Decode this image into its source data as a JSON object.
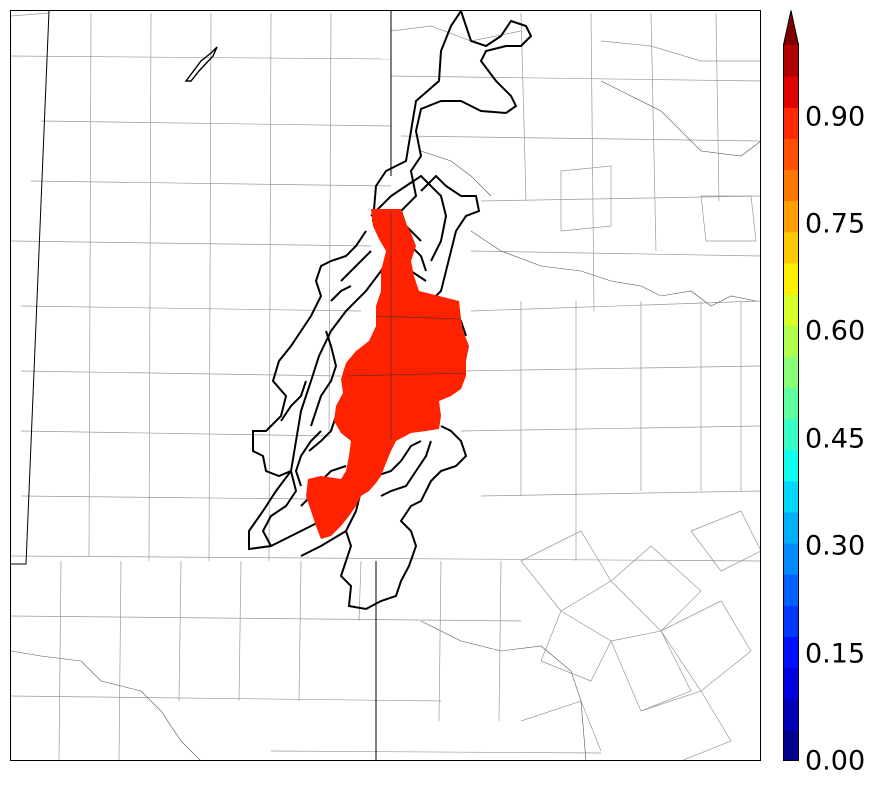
{
  "map": {
    "fill_color": "#ff2200",
    "boundary_color": "#000000"
  },
  "colorbar": {
    "min": 0.0,
    "max": 1.0,
    "extend": "max",
    "tick_labels": [
      "0.00",
      "0.15",
      "0.30",
      "0.45",
      "0.60",
      "0.75",
      "0.90"
    ],
    "tick_values": [
      0.0,
      0.15,
      0.3,
      0.45,
      0.6,
      0.75,
      0.9
    ],
    "levels": 21,
    "colors": [
      "#00008f",
      "#0000b8",
      "#0000e0",
      "#0010ff",
      "#0038ff",
      "#0060ff",
      "#0088ff",
      "#00b0ff",
      "#00d8ff",
      "#10ffef",
      "#38ffc7",
      "#60ff9f",
      "#88ff77",
      "#b0ff4f",
      "#d8ff27",
      "#ffee00",
      "#ffc800",
      "#ffa000",
      "#ff7800",
      "#ff5000",
      "#ff2800",
      "#e00000",
      "#b00000",
      "#800000"
    ]
  }
}
